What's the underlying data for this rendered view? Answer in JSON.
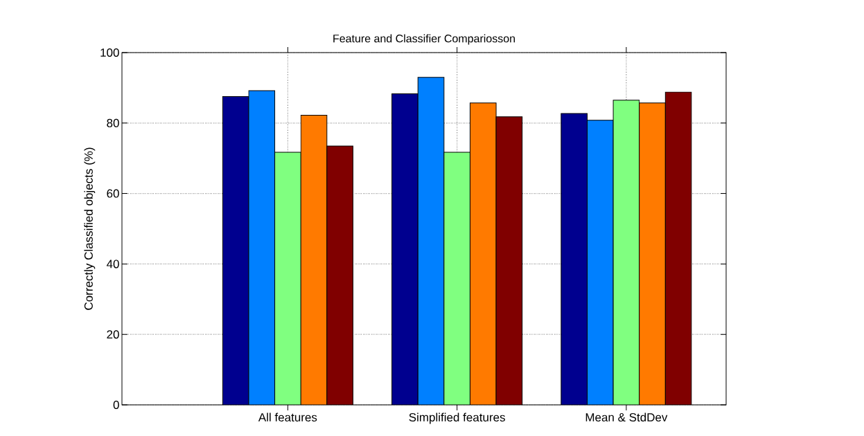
{
  "chart_data": {
    "type": "bar",
    "title": "Feature and Classifier Compariosson",
    "ylabel": "Correctly Classified objects (%)",
    "categories": [
      "All features",
      "Simplified features",
      "Mean & StdDev"
    ],
    "series": [
      {
        "color": "#00008f",
        "values": [
          87.5,
          88.3,
          82.7
        ]
      },
      {
        "color": "#0080ff",
        "values": [
          89.2,
          93.0,
          80.8
        ]
      },
      {
        "color": "#80ff80",
        "values": [
          71.7,
          71.7,
          86.5
        ]
      },
      {
        "color": "#ff7a00",
        "values": [
          82.2,
          85.7,
          85.7
        ]
      },
      {
        "color": "#800000",
        "values": [
          73.5,
          81.8,
          88.8
        ]
      }
    ],
    "ylim": [
      0,
      100
    ],
    "yticks": [
      0,
      20,
      40,
      60,
      80,
      100
    ],
    "grid": true
  }
}
